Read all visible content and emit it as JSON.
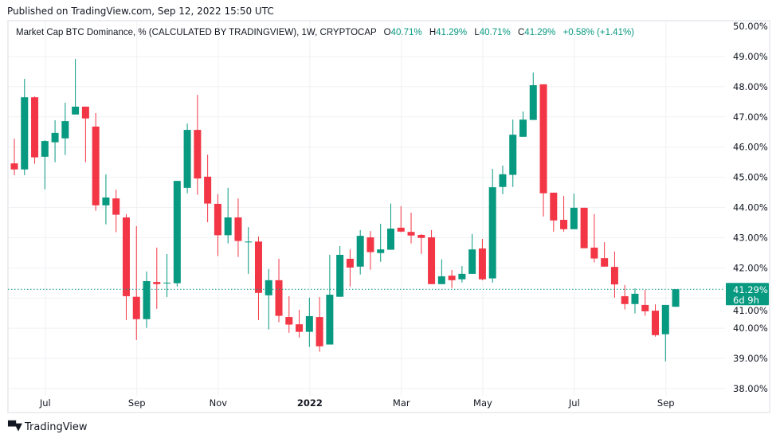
{
  "published": "Published on TradingView.com, Sep 12, 2022 15:50 UTC",
  "legend": {
    "title": "Market Cap BTC Dominance, % (CALCULATED BY TRADINGVIEW), 1W, CRYPTOCAP",
    "o_label": "O",
    "o_value": "40.71%",
    "h_label": "H",
    "h_value": "41.29%",
    "l_label": "L",
    "l_value": "40.71%",
    "c_label": "C",
    "c_value": "41.29%",
    "change": "+0.58% (+1.41%)"
  },
  "last_price": {
    "value": 41.29,
    "label": "41.29%",
    "countdown": "6d 9h"
  },
  "brand": {
    "name": "TradingView",
    "logo_text": "TV"
  },
  "colors": {
    "up": "#089981",
    "down": "#F23645",
    "grid": "#F0F1F4",
    "text": "#131722"
  },
  "chart_data": {
    "type": "candlestick",
    "title": "Market Cap BTC Dominance, %",
    "ylabel": "%",
    "ylim": [
      38,
      50
    ],
    "y_ticks": [
      "50.00%",
      "49.00%",
      "48.00%",
      "47.00%",
      "46.00%",
      "45.00%",
      "44.00%",
      "43.00%",
      "42.00%",
      "41.00%",
      "40.00%",
      "39.00%",
      "38.00%"
    ],
    "y_tick_values": [
      50,
      49,
      48,
      47,
      46,
      45,
      44,
      43,
      42,
      41,
      40,
      39,
      38
    ],
    "x_ticks": [
      {
        "label": "Jul",
        "index": 3,
        "bold": false
      },
      {
        "label": "Sep",
        "index": 12,
        "bold": false
      },
      {
        "label": "Nov",
        "index": 20,
        "bold": false
      },
      {
        "label": "2022",
        "index": 29,
        "bold": true
      },
      {
        "label": "Mar",
        "index": 38,
        "bold": false
      },
      {
        "label": "May",
        "index": 46,
        "bold": false
      },
      {
        "label": "Jul",
        "index": 55,
        "bold": false
      },
      {
        "label": "Sep",
        "index": 64,
        "bold": false
      }
    ],
    "grid": true,
    "ohlc": [
      [
        45.46,
        46.28,
        45.07,
        45.26
      ],
      [
        45.26,
        48.26,
        45.07,
        47.65
      ],
      [
        47.65,
        47.68,
        45.45,
        45.66
      ],
      [
        45.68,
        46.23,
        44.6,
        46.2
      ],
      [
        46.16,
        46.89,
        45.5,
        46.47
      ],
      [
        46.29,
        47.47,
        45.74,
        46.86
      ],
      [
        47.08,
        48.92,
        47.08,
        47.34
      ],
      [
        47.34,
        47.34,
        45.5,
        46.95
      ],
      [
        46.68,
        47.13,
        43.89,
        44.07
      ],
      [
        44.07,
        45.1,
        43.44,
        44.33
      ],
      [
        44.3,
        44.59,
        43.18,
        43.76
      ],
      [
        43.67,
        43.78,
        40.27,
        41.06
      ],
      [
        41.04,
        43.38,
        39.61,
        40.3
      ],
      [
        40.3,
        41.88,
        40.01,
        41.56
      ],
      [
        41.53,
        42.67,
        40.64,
        41.46
      ],
      [
        41.49,
        42.46,
        41.03,
        41.51
      ],
      [
        41.49,
        44.88,
        41.38,
        44.88
      ],
      [
        44.65,
        46.78,
        44.47,
        46.57
      ],
      [
        46.57,
        47.73,
        44.42,
        44.96
      ],
      [
        45.02,
        45.75,
        43.51,
        44.13
      ],
      [
        44.12,
        44.44,
        42.39,
        43.08
      ],
      [
        43.08,
        44.65,
        42.81,
        43.67
      ],
      [
        43.67,
        44.3,
        42.36,
        42.89
      ],
      [
        42.85,
        43.35,
        41.8,
        42.87
      ],
      [
        42.87,
        43.04,
        40.27,
        41.17
      ],
      [
        41.09,
        41.96,
        39.96,
        41.59
      ],
      [
        41.59,
        42.3,
        40.2,
        40.41
      ],
      [
        40.37,
        41.06,
        39.85,
        40.12
      ],
      [
        40.13,
        40.61,
        39.69,
        39.88
      ],
      [
        39.88,
        41.01,
        39.38,
        40.4
      ],
      [
        40.37,
        41.03,
        39.22,
        39.4
      ],
      [
        39.46,
        42.43,
        39.46,
        41.11
      ],
      [
        41.04,
        42.72,
        41.04,
        42.43
      ],
      [
        42.3,
        42.61,
        41.38,
        42.01
      ],
      [
        42.04,
        43.25,
        41.78,
        43.06
      ],
      [
        43.01,
        43.22,
        41.94,
        42.52
      ],
      [
        42.49,
        43.46,
        42.2,
        42.61
      ],
      [
        42.6,
        44.13,
        42.6,
        43.3
      ],
      [
        43.33,
        44.04,
        43.18,
        43.2
      ],
      [
        43.19,
        43.83,
        42.81,
        43.07
      ],
      [
        43.09,
        43.12,
        42.46,
        42.99
      ],
      [
        43.01,
        43.25,
        41.46,
        41.46
      ],
      [
        41.46,
        42.28,
        41.46,
        41.72
      ],
      [
        41.74,
        41.93,
        41.33,
        41.59
      ],
      [
        41.62,
        42.06,
        41.51,
        41.8
      ],
      [
        41.8,
        43.12,
        41.8,
        42.61
      ],
      [
        42.64,
        42.96,
        41.59,
        41.62
      ],
      [
        41.65,
        45.28,
        41.51,
        44.67
      ],
      [
        44.68,
        45.39,
        44.44,
        45.1
      ],
      [
        45.08,
        46.91,
        44.68,
        46.41
      ],
      [
        46.34,
        47.18,
        46.34,
        46.91
      ],
      [
        46.9,
        48.47,
        46.9,
        48.05
      ],
      [
        48.08,
        48.08,
        43.7,
        44.47
      ],
      [
        44.49,
        44.49,
        43.2,
        43.57
      ],
      [
        43.59,
        44.38,
        43.2,
        43.28
      ],
      [
        43.28,
        44.46,
        43.28,
        43.99
      ],
      [
        43.99,
        43.99,
        42.65,
        42.65
      ],
      [
        42.67,
        43.78,
        42.18,
        42.31
      ],
      [
        42.32,
        42.85,
        42.04,
        42.04
      ],
      [
        42.03,
        42.54,
        41.01,
        41.45
      ],
      [
        41.06,
        41.43,
        40.62,
        40.8
      ],
      [
        40.8,
        41.32,
        40.49,
        41.14
      ],
      [
        40.77,
        41.27,
        40.41,
        40.56
      ],
      [
        40.58,
        40.79,
        39.72,
        39.77
      ],
      [
        39.8,
        40.77,
        38.9,
        40.77
      ],
      [
        40.71,
        41.29,
        40.71,
        41.29
      ]
    ]
  }
}
